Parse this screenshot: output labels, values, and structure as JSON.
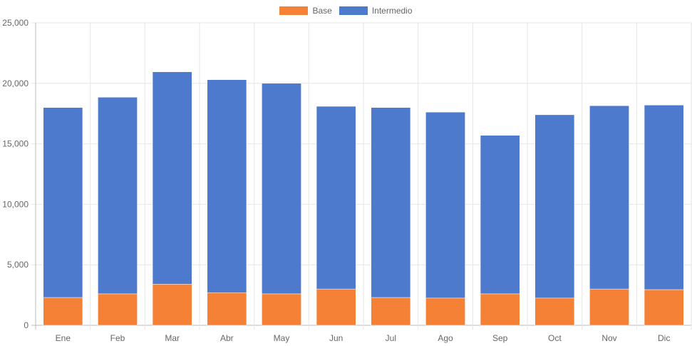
{
  "chart_data": {
    "type": "bar",
    "stacked": true,
    "categories": [
      "Ene",
      "Feb",
      "Mar",
      "Abr",
      "May",
      "Jun",
      "Jul",
      "Ago",
      "Sep",
      "Oct",
      "Nov",
      "Dic"
    ],
    "series": [
      {
        "name": "Base",
        "color": "#f58136",
        "values": [
          2300,
          2600,
          3400,
          2700,
          2600,
          3000,
          2300,
          2250,
          2600,
          2250,
          3000,
          2950
        ]
      },
      {
        "name": "Intermedio",
        "color": "#4d7acc",
        "values": [
          15700,
          16250,
          17550,
          17600,
          17400,
          15100,
          15700,
          15370,
          13100,
          15150,
          15150,
          15250
        ]
      }
    ],
    "ylim": [
      0,
      25000
    ],
    "yticks": [
      "0",
      "5,000",
      "10,000",
      "15,000",
      "20,000",
      "25,000"
    ],
    "ytick_values": [
      0,
      5000,
      10000,
      15000,
      20000,
      25000
    ],
    "grid": true,
    "legend_position": "top-center"
  }
}
